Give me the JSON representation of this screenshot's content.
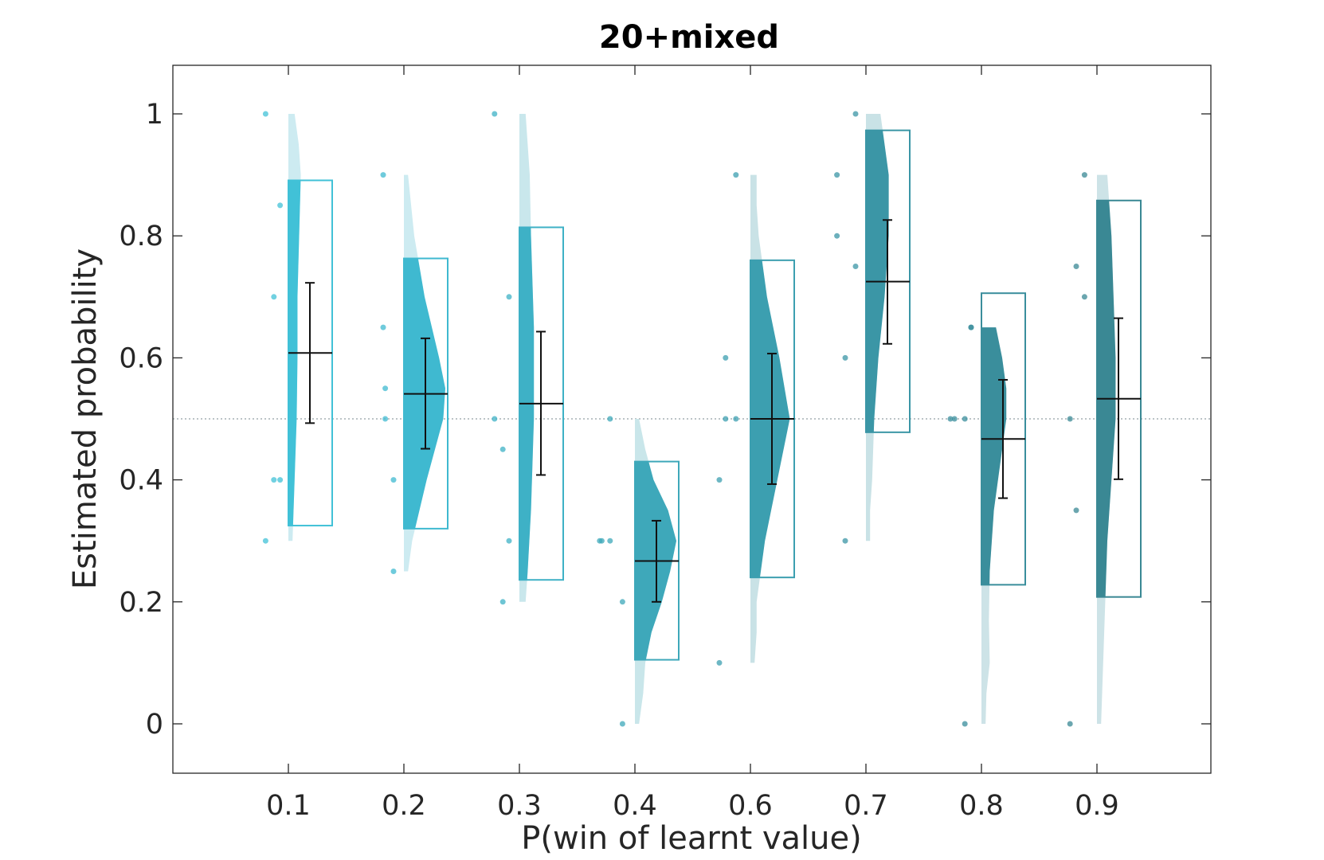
{
  "chart_data": {
    "type": "raincloud",
    "title": "20+mixed",
    "xlabel": "P(win of learnt value)",
    "ylabel": "Estimated probability",
    "ylim": [
      -0.08,
      1.08
    ],
    "yticks": [
      0,
      0.2,
      0.4,
      0.6,
      0.8,
      1
    ],
    "ytick_labels": [
      "0",
      "0.2",
      "0.4",
      "0.6",
      "0.8",
      "1"
    ],
    "reference_line": 0.5,
    "groups": [
      {
        "label": "0.1",
        "color": "#41c1d7",
        "light": "#cdebf1",
        "mean": 0.608,
        "err_low": 0.493,
        "err_high": 0.723,
        "box_low": 0.325,
        "box_high": 0.891,
        "density": [
          [
            0.3,
            0.1
          ],
          [
            0.34,
            0.12
          ],
          [
            0.4,
            0.15
          ],
          [
            0.5,
            0.2
          ],
          [
            0.6,
            0.22
          ],
          [
            0.7,
            0.22
          ],
          [
            0.8,
            0.26
          ],
          [
            0.9,
            0.3
          ],
          [
            0.95,
            0.25
          ],
          [
            1.0,
            0.15
          ]
        ],
        "points": [
          [
            0.3,
            -0.55
          ],
          [
            0.4,
            -0.35
          ],
          [
            0.4,
            -0.2
          ],
          [
            0.7,
            -0.35
          ],
          [
            0.85,
            -0.2
          ],
          [
            1.0,
            -0.55
          ]
        ]
      },
      {
        "label": "0.2",
        "color": "#3fb9d0",
        "light": "#cdebf1",
        "mean": 0.541,
        "err_low": 0.451,
        "err_high": 0.632,
        "box_low": 0.32,
        "box_high": 0.763,
        "density": [
          [
            0.25,
            0.1
          ],
          [
            0.3,
            0.2
          ],
          [
            0.4,
            0.55
          ],
          [
            0.5,
            0.95
          ],
          [
            0.55,
            1.0
          ],
          [
            0.6,
            0.85
          ],
          [
            0.7,
            0.5
          ],
          [
            0.8,
            0.25
          ],
          [
            0.9,
            0.1
          ]
        ],
        "points": [
          [
            0.25,
            -0.25
          ],
          [
            0.4,
            -0.25
          ],
          [
            0.5,
            -0.45
          ],
          [
            0.55,
            -0.45
          ],
          [
            0.65,
            -0.5
          ],
          [
            0.9,
            -0.5
          ]
        ]
      },
      {
        "label": "0.3",
        "color": "#3eb1c6",
        "light": "#c9e7ec",
        "mean": 0.525,
        "err_low": 0.408,
        "err_high": 0.643,
        "box_low": 0.236,
        "box_high": 0.814,
        "density": [
          [
            0.2,
            0.15
          ],
          [
            0.25,
            0.2
          ],
          [
            0.35,
            0.28
          ],
          [
            0.5,
            0.35
          ],
          [
            0.65,
            0.35
          ],
          [
            0.8,
            0.28
          ],
          [
            0.9,
            0.25
          ],
          [
            0.95,
            0.2
          ],
          [
            1.0,
            0.15
          ]
        ],
        "points": [
          [
            0.2,
            -0.4
          ],
          [
            0.3,
            -0.25
          ],
          [
            0.45,
            -0.4
          ],
          [
            0.5,
            -0.6
          ],
          [
            0.7,
            -0.25
          ],
          [
            1.0,
            -0.6
          ]
        ]
      },
      {
        "label": "0.4",
        "color": "#3ea8ba",
        "light": "#c9e6ea",
        "mean": 0.267,
        "err_low": 0.2,
        "err_high": 0.333,
        "box_low": 0.105,
        "box_high": 0.43,
        "density": [
          [
            0.0,
            0.1
          ],
          [
            0.05,
            0.2
          ],
          [
            0.1,
            0.25
          ],
          [
            0.15,
            0.4
          ],
          [
            0.2,
            0.65
          ],
          [
            0.25,
            0.85
          ],
          [
            0.3,
            1.0
          ],
          [
            0.35,
            0.8
          ],
          [
            0.4,
            0.45
          ],
          [
            0.45,
            0.25
          ],
          [
            0.5,
            0.1
          ]
        ],
        "points": [
          [
            0.0,
            -0.3
          ],
          [
            0.2,
            -0.3
          ],
          [
            0.3,
            -0.8
          ],
          [
            0.3,
            -0.85
          ],
          [
            0.3,
            -0.6
          ],
          [
            0.5,
            -0.6
          ]
        ]
      },
      {
        "label": "0.6",
        "color": "#3c9fb0",
        "light": "#c9e2e6",
        "mean": 0.5,
        "err_low": 0.393,
        "err_high": 0.607,
        "box_low": 0.24,
        "box_high": 0.76,
        "density": [
          [
            0.1,
            0.1
          ],
          [
            0.15,
            0.15
          ],
          [
            0.2,
            0.15
          ],
          [
            0.3,
            0.35
          ],
          [
            0.4,
            0.65
          ],
          [
            0.5,
            0.95
          ],
          [
            0.6,
            0.7
          ],
          [
            0.7,
            0.4
          ],
          [
            0.8,
            0.2
          ],
          [
            0.85,
            0.15
          ],
          [
            0.9,
            0.15
          ]
        ],
        "points": [
          [
            0.1,
            -0.75
          ],
          [
            0.4,
            -0.75
          ],
          [
            0.5,
            -0.6
          ],
          [
            0.5,
            -0.35
          ],
          [
            0.6,
            -0.6
          ],
          [
            0.9,
            -0.35
          ]
        ]
      },
      {
        "label": "0.7",
        "color": "#3b96a6",
        "light": "#c9e2e6",
        "mean": 0.725,
        "err_low": 0.623,
        "err_high": 0.826,
        "box_low": 0.478,
        "box_high": 0.973,
        "density": [
          [
            0.3,
            0.1
          ],
          [
            0.35,
            0.1
          ],
          [
            0.4,
            0.15
          ],
          [
            0.5,
            0.2
          ],
          [
            0.6,
            0.3
          ],
          [
            0.7,
            0.45
          ],
          [
            0.8,
            0.55
          ],
          [
            0.9,
            0.55
          ],
          [
            0.95,
            0.45
          ],
          [
            1.0,
            0.35
          ]
        ],
        "points": [
          [
            0.3,
            -0.5
          ],
          [
            0.6,
            -0.5
          ],
          [
            0.75,
            -0.25
          ],
          [
            0.8,
            -0.7
          ],
          [
            0.9,
            -0.7
          ],
          [
            1.0,
            -0.25
          ]
        ]
      },
      {
        "label": "0.8",
        "color": "#3a8e9c",
        "light": "#cde3e7",
        "mean": 0.467,
        "err_low": 0.37,
        "err_high": 0.564,
        "box_low": 0.228,
        "box_high": 0.706,
        "density": [
          [
            0.0,
            0.1
          ],
          [
            0.05,
            0.12
          ],
          [
            0.1,
            0.2
          ],
          [
            0.17,
            0.18
          ],
          [
            0.25,
            0.2
          ],
          [
            0.35,
            0.3
          ],
          [
            0.45,
            0.5
          ],
          [
            0.5,
            0.6
          ],
          [
            0.55,
            0.6
          ],
          [
            0.6,
            0.5
          ],
          [
            0.65,
            0.35
          ]
        ],
        "points": [
          [
            0.0,
            -0.4
          ],
          [
            0.5,
            -0.75
          ],
          [
            0.5,
            -0.4
          ],
          [
            0.5,
            -0.65
          ],
          [
            0.65,
            -0.25
          ],
          [
            0.65,
            -0.25
          ]
        ]
      },
      {
        "label": "0.9",
        "color": "#3a8894",
        "light": "#cde3e7",
        "mean": 0.533,
        "err_low": 0.401,
        "err_high": 0.665,
        "box_low": 0.208,
        "box_high": 0.858,
        "density": [
          [
            0.0,
            0.1
          ],
          [
            0.1,
            0.15
          ],
          [
            0.2,
            0.2
          ],
          [
            0.3,
            0.25
          ],
          [
            0.4,
            0.35
          ],
          [
            0.5,
            0.45
          ],
          [
            0.6,
            0.45
          ],
          [
            0.7,
            0.4
          ],
          [
            0.8,
            0.35
          ],
          [
            0.85,
            0.3
          ],
          [
            0.9,
            0.25
          ]
        ],
        "points": [
          [
            0.0,
            -0.65
          ],
          [
            0.35,
            -0.5
          ],
          [
            0.5,
            -0.65
          ],
          [
            0.7,
            -0.3
          ],
          [
            0.75,
            -0.5
          ],
          [
            0.9,
            -0.3
          ]
        ]
      }
    ]
  }
}
